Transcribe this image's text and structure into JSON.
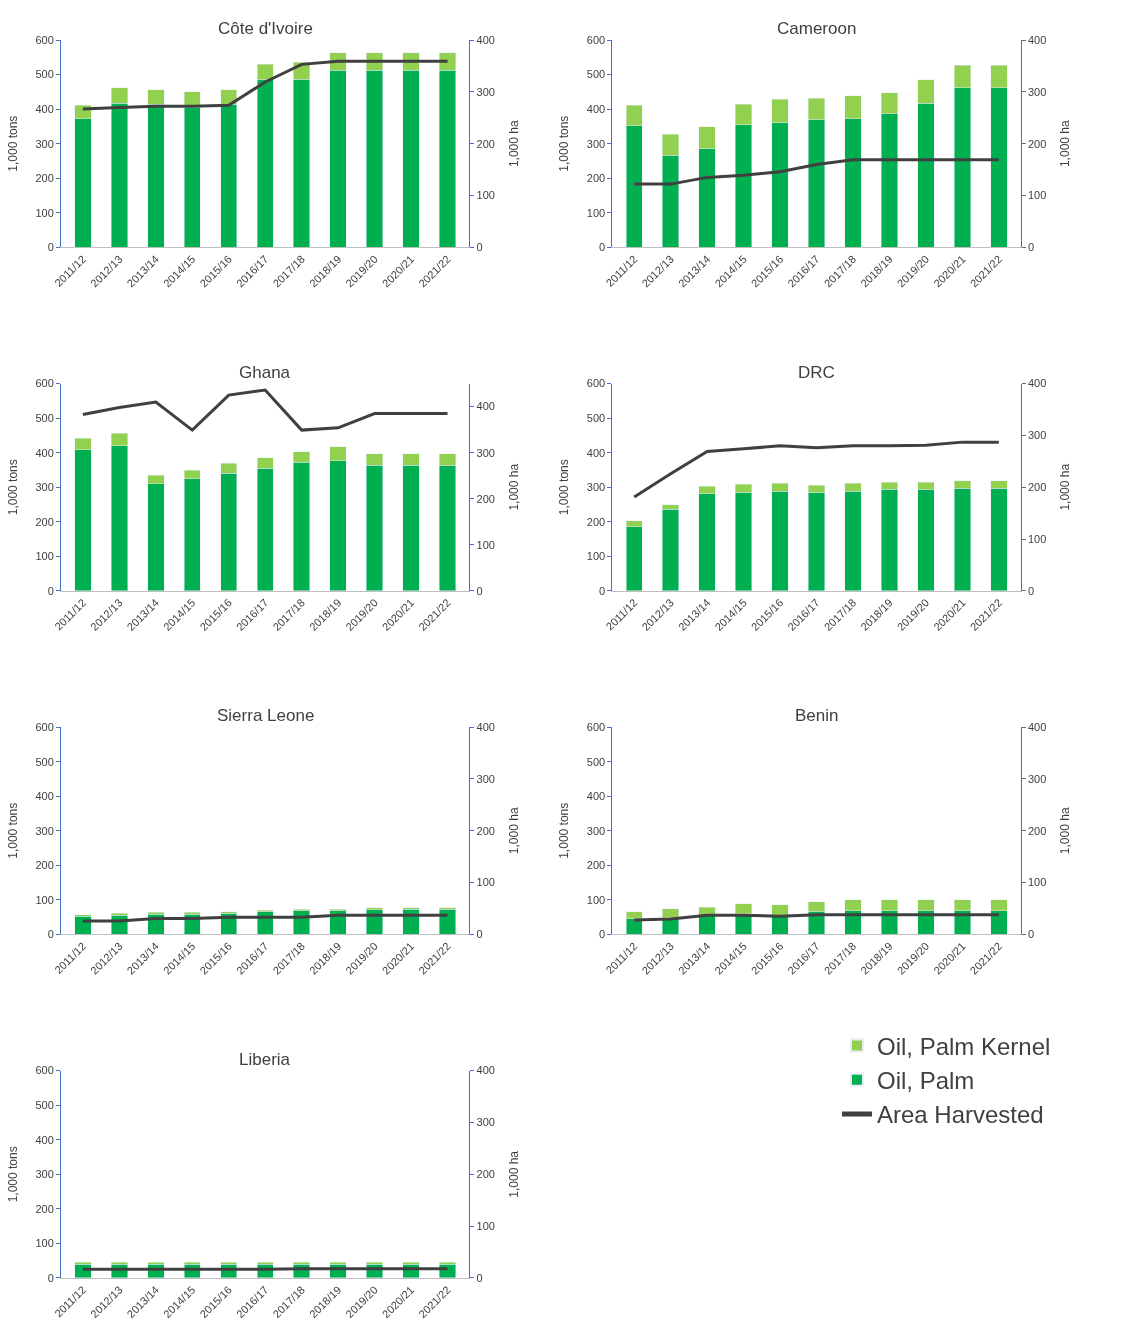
{
  "chart_data": [
    {
      "type": "bar",
      "stacked": true,
      "title": "Côte d'Ivoire",
      "ylabel": "1,000 tons",
      "y2label": "1,000 ha",
      "categories": [
        "2011/12",
        "2012/13",
        "2013/14",
        "2014/15",
        "2015/16",
        "2016/17",
        "2017/18",
        "2018/19",
        "2019/20",
        "2020/21",
        "2021/22"
      ],
      "ylim": [
        0,
        600
      ],
      "yticks": [
        0,
        100,
        200,
        300,
        400,
        500,
        600
      ],
      "y2lim": [
        0,
        400
      ],
      "y2ticks": [
        0,
        100,
        200,
        300,
        400
      ],
      "legend": "bottom right",
      "series": [
        {
          "name": "Oil, Palm",
          "color": "#00b050",
          "values": [
            372,
            417,
            414,
            405,
            414,
            485,
            487,
            513,
            513,
            513,
            513
          ]
        },
        {
          "name": "Oil, Palm Kernel",
          "color": "#92d050",
          "values": [
            39,
            45,
            42,
            45,
            42,
            45,
            48,
            50,
            50,
            50,
            50
          ]
        },
        {
          "name": "Area Harvested",
          "type": "line",
          "axis": "y2",
          "color": "#404040",
          "marker": "none",
          "values": [
            267,
            270,
            272,
            272,
            274,
            319,
            353,
            359,
            359,
            359,
            359
          ]
        }
      ]
    },
    {
      "type": "bar",
      "stacked": true,
      "title": "Cameroon",
      "ylabel": "1,000 tons",
      "y2label": "1,000 ha",
      "categories": [
        "2011/12",
        "2012/13",
        "2013/14",
        "2014/15",
        "2015/16",
        "2016/17",
        "2017/18",
        "2018/19",
        "2019/20",
        "2020/21",
        "2021/22"
      ],
      "ylim": [
        0,
        600
      ],
      "yticks": [
        0,
        100,
        200,
        300,
        400,
        500,
        600
      ],
      "y2lim": [
        0,
        400
      ],
      "y2ticks": [
        0,
        100,
        200,
        300,
        400
      ],
      "series": [
        {
          "color": "#00b050",
          "values": [
            352,
            265,
            285,
            355,
            361,
            369,
            372,
            386,
            417,
            462,
            462
          ]
        },
        {
          "color": "#92d050",
          "values": [
            59,
            62,
            64,
            59,
            67,
            62,
            67,
            62,
            68,
            65,
            65
          ]
        },
        {
          "type": "line",
          "axis": "y2",
          "color": "#404040",
          "marker": "none",
          "values": [
            122,
            122,
            135,
            139,
            146,
            160,
            169,
            169,
            169,
            169,
            169
          ]
        }
      ]
    },
    {
      "type": "bar",
      "stacked": true,
      "title": "Ghana",
      "ylabel": "1,000 tons",
      "y2label": "1,000 ha",
      "categories": [
        "2011/12",
        "2012/13",
        "2013/14",
        "2014/15",
        "2015/16",
        "2016/17",
        "2017/18",
        "2018/19",
        "2019/20",
        "2020/21",
        "2021/22"
      ],
      "ylim": [
        0,
        600
      ],
      "yticks": [
        0,
        100,
        200,
        300,
        400,
        500,
        600
      ],
      "y2lim": [
        0,
        450
      ],
      "y2ticks": [
        0,
        100,
        200,
        300,
        400
      ],
      "series": [
        {
          "color": "#00b050",
          "values": [
            408,
            420,
            310,
            324,
            341,
            355,
            372,
            377,
            363,
            363,
            363
          ]
        },
        {
          "color": "#92d050",
          "values": [
            34,
            36,
            25,
            25,
            28,
            31,
            31,
            40,
            34,
            34,
            34
          ]
        },
        {
          "type": "line",
          "axis": "y2",
          "color": "#404040",
          "marker": "none",
          "values": [
            383,
            398,
            410,
            349,
            425,
            436,
            349,
            354,
            385,
            385,
            385
          ]
        }
      ]
    },
    {
      "type": "bar",
      "stacked": true,
      "title": "DRC",
      "ylabel": "1,000 tons",
      "y2label": "1,000 ha",
      "categories": [
        "2011/12",
        "2012/13",
        "2013/14",
        "2014/15",
        "2015/16",
        "2016/17",
        "2017/18",
        "2018/19",
        "2019/20",
        "2020/21",
        "2021/22"
      ],
      "ylim": [
        0,
        600
      ],
      "yticks": [
        0,
        100,
        200,
        300,
        400,
        500,
        600
      ],
      "y2lim": [
        0,
        400
      ],
      "y2ticks": [
        0,
        100,
        200,
        300,
        400
      ],
      "series": [
        {
          "color": "#00b050",
          "values": [
            186,
            236,
            281,
            286,
            289,
            286,
            289,
            294,
            294,
            297,
            297
          ]
        },
        {
          "color": "#92d050",
          "values": [
            17,
            14,
            22,
            22,
            22,
            20,
            22,
            20,
            20,
            22,
            22
          ]
        },
        {
          "type": "line",
          "axis": "y2",
          "color": "#404040",
          "marker": "none",
          "values": [
            181,
            226,
            269,
            274,
            280,
            276,
            280,
            280,
            281,
            287,
            287
          ]
        }
      ]
    },
    {
      "type": "bar",
      "stacked": true,
      "title": "Sierra Leone",
      "ylabel": "1,000 tons",
      "y2label": "1,000 ha",
      "categories": [
        "2011/12",
        "2012/13",
        "2013/14",
        "2014/15",
        "2015/16",
        "2016/17",
        "2017/18",
        "2018/19",
        "2019/20",
        "2020/21",
        "2021/22"
      ],
      "ylim": [
        0,
        600
      ],
      "yticks": [
        0,
        100,
        200,
        300,
        400,
        500,
        600
      ],
      "y2lim": [
        0,
        400
      ],
      "y2ticks": [
        0,
        100,
        200,
        300,
        400
      ],
      "series": [
        {
          "color": "#00b050",
          "values": [
            52,
            56,
            59,
            59,
            61,
            65,
            68,
            68,
            72,
            73,
            73
          ]
        },
        {
          "color": "#92d050",
          "values": [
            5,
            5,
            5,
            5,
            5,
            5,
            5,
            5,
            5,
            5,
            5
          ]
        },
        {
          "type": "line",
          "axis": "y2",
          "color": "#404040",
          "marker": "none",
          "values": [
            26,
            26,
            31,
            31,
            33,
            33,
            33,
            37,
            37,
            37,
            37
          ]
        }
      ]
    },
    {
      "type": "bar",
      "stacked": true,
      "title": "Benin",
      "ylabel": "1,000 tons",
      "y2label": "1,000 ha",
      "categories": [
        "2011/12",
        "2012/13",
        "2013/14",
        "2014/15",
        "2015/16",
        "2016/17",
        "2017/18",
        "2018/19",
        "2019/20",
        "2020/21",
        "2021/22"
      ],
      "ylim": [
        0,
        600
      ],
      "yticks": [
        0,
        100,
        200,
        300,
        400,
        500,
        600
      ],
      "y2lim": [
        0,
        400
      ],
      "y2ticks": [
        0,
        100,
        200,
        300,
        400
      ],
      "series": [
        {
          "color": "#00b050",
          "values": [
            45,
            48,
            55,
            60,
            55,
            65,
            68,
            68,
            68,
            68,
            68
          ]
        },
        {
          "color": "#92d050",
          "values": [
            21,
            26,
            24,
            29,
            31,
            30,
            32,
            32,
            32,
            32,
            32
          ]
        },
        {
          "type": "line",
          "axis": "y2",
          "color": "#404040",
          "marker": "none",
          "values": [
            28,
            30,
            37,
            37,
            35,
            38,
            38,
            38,
            38,
            38,
            38
          ]
        }
      ]
    },
    {
      "type": "bar",
      "stacked": true,
      "title": "Liberia",
      "ylabel": "1,000 tons",
      "y2label": "1,000 ha",
      "categories": [
        "2011/12",
        "2012/13",
        "2013/14",
        "2014/15",
        "2015/16",
        "2016/17",
        "2017/18",
        "2018/19",
        "2019/20",
        "2020/21",
        "2021/22"
      ],
      "ylim": [
        0,
        600
      ],
      "yticks": [
        0,
        100,
        200,
        300,
        400,
        500,
        600
      ],
      "y2lim": [
        0,
        400
      ],
      "y2ticks": [
        0,
        100,
        200,
        300,
        400
      ],
      "series": [
        {
          "color": "#00b050",
          "values": [
            40,
            40,
            40,
            40,
            40,
            40,
            40,
            40,
            40,
            40,
            40
          ]
        },
        {
          "color": "#92d050",
          "values": [
            5,
            5,
            5,
            5,
            5,
            5,
            5,
            5,
            5,
            5,
            5
          ]
        },
        {
          "type": "line",
          "axis": "y2",
          "color": "#404040",
          "marker": "none",
          "values": [
            17,
            17,
            17,
            17,
            17,
            17,
            18,
            18,
            18,
            18,
            18
          ]
        }
      ]
    }
  ]
}
